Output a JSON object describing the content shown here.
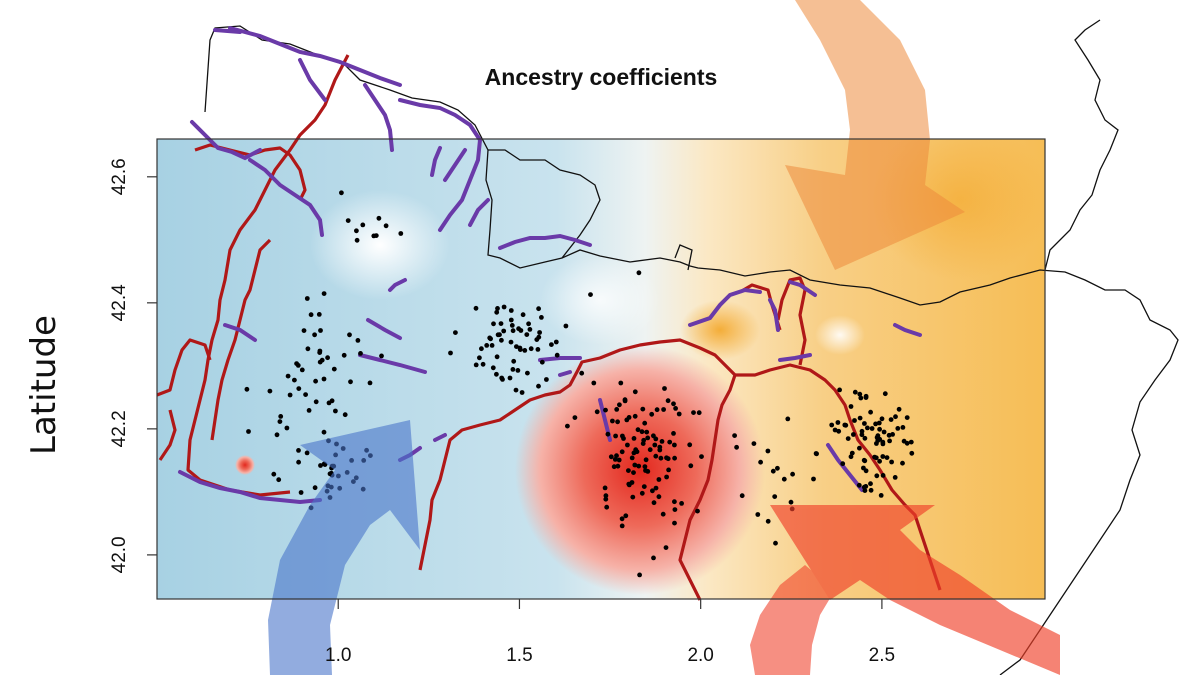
{
  "title": "Ancestry coefficients",
  "ylabel": "Latitude",
  "x_ticks": [
    "1.0",
    "1.5",
    "2.0",
    "2.5"
  ],
  "y_ticks": [
    "42.0",
    "42.2",
    "42.4",
    "42.6"
  ],
  "x_range": [
    0.5,
    2.95
  ],
  "y_range": [
    41.93,
    42.66
  ],
  "legend": "none",
  "colors": {
    "cluster_blue": "#a9d3e6",
    "cluster_red": "#e8463a",
    "cluster_orange": "#f6b94f",
    "river_lines": "#b01818",
    "boundary_lines": "#6a3aa8",
    "coastline": "#111111",
    "points": "#000000"
  },
  "arrows": [
    {
      "color": "blue",
      "from": "south",
      "direction": "north-east"
    },
    {
      "color": "orange",
      "from": "north",
      "direction": "south-west"
    },
    {
      "color": "red",
      "from": "south-east",
      "direction": "north-west"
    }
  ]
}
